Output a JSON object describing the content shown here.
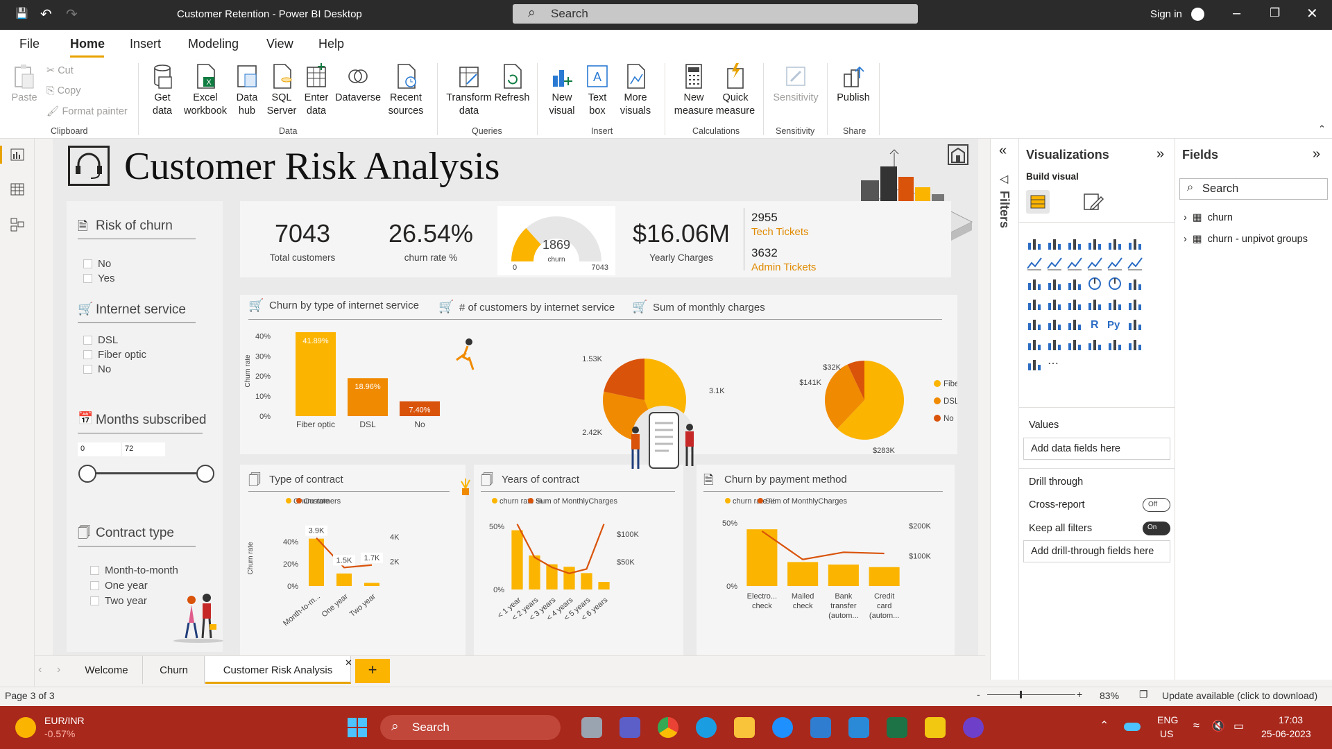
{
  "window": {
    "title": "Customer Retention - Power BI Desktop",
    "search_placeholder": "Search",
    "sign_in": "Sign in"
  },
  "menu": {
    "items": [
      "File",
      "Home",
      "Insert",
      "Modeling",
      "View",
      "Help"
    ],
    "active": "Home"
  },
  "ribbon": {
    "clipboard": {
      "paste": "Paste",
      "cut": "Cut",
      "copy": "Copy",
      "format_painter": "Format painter",
      "group": "Clipboard"
    },
    "data": {
      "get_data": "Get\ndata",
      "excel": "Excel\nworkbook",
      "data_hub": "Data\nhub",
      "sql": "SQL\nServer",
      "enter_data": "Enter\ndata",
      "dataverse": "Dataverse",
      "recent": "Recent\nsources",
      "group": "Data"
    },
    "queries": {
      "transform": "Transform\ndata",
      "refresh": "Refresh",
      "group": "Queries"
    },
    "insert": {
      "new_visual": "New\nvisual",
      "text_box": "Text\nbox",
      "more_visuals": "More\nvisuals",
      "group": "Insert"
    },
    "calculations": {
      "new_measure": "New\nmeasure",
      "quick_measure": "Quick\nmeasure",
      "group": "Calculations"
    },
    "sensitivity": {
      "label": "Sensitivity",
      "group": "Sensitivity"
    },
    "share": {
      "publish": "Publish",
      "group": "Share"
    }
  },
  "report": {
    "title": "Customer Risk Analysis",
    "slicers": [
      {
        "title": "Risk of churn",
        "options": [
          "No",
          "Yes"
        ]
      },
      {
        "title": "Internet service",
        "options": [
          "DSL",
          "Fiber optic",
          "No"
        ]
      },
      {
        "title": "Months subscribed",
        "min": "0",
        "max": "72"
      },
      {
        "title": "Contract type",
        "options": [
          "Month-to-month",
          "One year",
          "Two year"
        ]
      }
    ],
    "kpis": {
      "total_customers": "7043",
      "total_customers_label": "Total customers",
      "churn_rate": "26.54%",
      "churn_rate_label": "churn rate %",
      "gauge_value": "1869",
      "gauge_label": "churn",
      "gauge_min": "0",
      "gauge_max": "7043",
      "yearly_charges": "$16.06M",
      "yearly_charges_label": "Yearly Charges",
      "tech_tickets": "2955",
      "tech_tickets_label": "Tech Tickets",
      "admin_tickets": "3632",
      "admin_tickets_label": "Admin Tickets"
    },
    "visual_titles": [
      "Churn by type of internet service",
      "# of customers by internet service",
      "Sum of monthly charges",
      "Type of contract",
      "Years of contract",
      "Churn by payment method"
    ]
  },
  "chart_data": [
    {
      "type": "bar",
      "title": "Churn by type of internet service",
      "categories": [
        "Fiber optic",
        "DSL",
        "No"
      ],
      "values": [
        41.89,
        18.96,
        7.4
      ],
      "data_labels": [
        "41.89%",
        "18.96%",
        "7.40%"
      ],
      "ylabel": "Churn rate",
      "yticks": [
        "0%",
        "10%",
        "20%",
        "30%",
        "40%"
      ],
      "ylim": [
        0,
        45
      ]
    },
    {
      "type": "pie",
      "title": "# of customers by internet service",
      "values": [
        3100,
        2420,
        1530
      ],
      "data_labels": [
        "3.1K",
        "2.42K",
        "1.53K"
      ]
    },
    {
      "type": "pie",
      "title": "Sum of monthly charges",
      "categories": [
        "Fiber optic",
        "DSL",
        "No"
      ],
      "values": [
        283,
        141,
        32
      ],
      "data_labels": [
        "$283K",
        "$141K",
        "$32K"
      ]
    },
    {
      "type": "bar",
      "title": "Type of contract",
      "categories": [
        "Month-to-m...",
        "One year",
        "Two year"
      ],
      "series": [
        {
          "name": "Churn rate",
          "values": [
            42.71,
            11.27,
            2.83
          ]
        },
        {
          "name": "Customers",
          "values": [
            3900,
            1500,
            1700
          ]
        }
      ],
      "data_labels": [
        "3.9K",
        "1.5K",
        "1.7K"
      ],
      "ylabel": "Churn rate",
      "yticks": [
        "0%",
        "20%",
        "40%"
      ],
      "y2ticks": [
        "2K",
        "4K"
      ]
    },
    {
      "type": "bar",
      "title": "Years of contract",
      "categories": [
        "< 1 year",
        "< 2 years",
        "< 3 years",
        "< 4 years",
        "< 5 years",
        "< 6 years"
      ],
      "series": [
        {
          "name": "churn rate %",
          "values": [
            47,
            27,
            20,
            18,
            13,
            6
          ]
        },
        {
          "name": "Sum of MonthlyCharges",
          "values": [
            118000,
            58000,
            40000,
            29000,
            37000,
            118000
          ]
        }
      ],
      "yticks": [
        "0%",
        "50%"
      ],
      "y2ticks": [
        "$50K",
        "$100K"
      ]
    },
    {
      "type": "bar",
      "title": "Churn by payment method",
      "categories": [
        "Electro...\ncheck",
        "Mailed\ncheck",
        "Bank\ntransfer\n(autom...",
        "Credit\ncard\n(autom..."
      ],
      "series": [
        {
          "name": "churn rate %",
          "values": [
            45,
            19,
            17,
            15
          ]
        },
        {
          "name": "Sum of MonthlyCharges",
          "values": [
            182000,
            88000,
            112000,
            108000
          ]
        }
      ],
      "yticks": [
        "0%",
        "50%"
      ],
      "y2ticks": [
        "$100K",
        "$200K"
      ]
    }
  ],
  "panes": {
    "filters": "Filters",
    "visualizations": {
      "title": "Visualizations",
      "build": "Build visual",
      "values": "Values",
      "add_data": "Add data fields here",
      "drill": "Drill through",
      "cross_report": "Cross-report",
      "cross_state": "Off",
      "keep_filters": "Keep all filters",
      "keep_state": "On",
      "add_drill": "Add drill-through fields here"
    },
    "fields": {
      "title": "Fields",
      "search": "Search",
      "tables": [
        "churn",
        "churn - unpivot groups"
      ]
    }
  },
  "tabs": {
    "pages": [
      "Welcome",
      "Churn",
      "Customer Risk Analysis"
    ],
    "active": "Customer Risk Analysis",
    "add": "+"
  },
  "status": {
    "page": "Page 3 of 3",
    "zoom": "83%",
    "update": "Update available (click to download)"
  },
  "taskbar": {
    "ticker": "EUR/INR",
    "change": "-0.57%",
    "search": "Search",
    "lang1": "ENG",
    "lang2": "US",
    "time": "17:03",
    "date": "25-06-2023"
  },
  "colors": {
    "accent": "#fbb400",
    "mid": "#f08a00",
    "dark": "#d9530a",
    "ribbon_accent": "#e8a200",
    "taskbar": "#a8281c"
  }
}
